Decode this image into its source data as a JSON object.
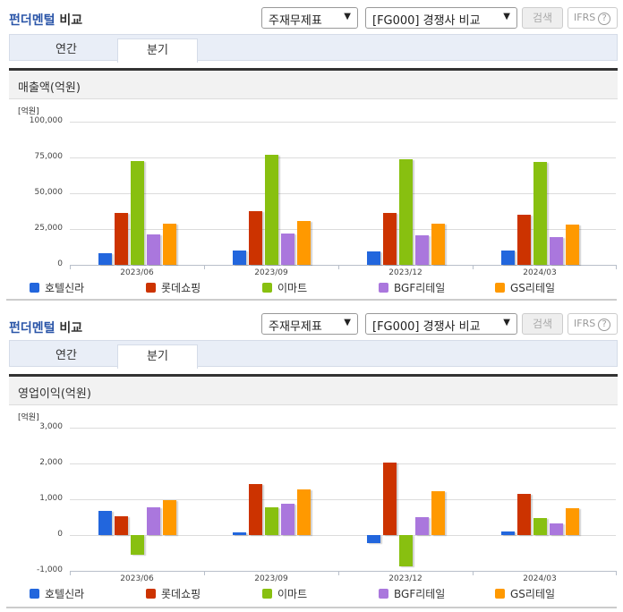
{
  "header": {
    "title_accent": "펀더멘털",
    "title_rest": " 비교",
    "statement_select": "주재무제표",
    "group_select": "[FG000] 경쟁사 비교",
    "search_label": "검색",
    "ifrs_label": "IFRS",
    "help_glyph": "?"
  },
  "tabs": [
    {
      "label": "연간",
      "active": false
    },
    {
      "label": "분기",
      "active": true
    }
  ],
  "legend": [
    {
      "name": "호텔신라",
      "color": "#2266dd"
    },
    {
      "name": "롯데쇼핑",
      "color": "#cc3300"
    },
    {
      "name": "이마트",
      "color": "#88c010"
    },
    {
      "name": "BGF리테일",
      "color": "#aa77dd"
    },
    {
      "name": "GS리테일",
      "color": "#ff9900"
    }
  ],
  "chart_data": [
    {
      "type": "bar",
      "title": "매출액(억원)",
      "unit_label": "[억원]",
      "ylabel": "억원",
      "categories": [
        "2023/06",
        "2023/09",
        "2023/12",
        "2024/03"
      ],
      "yticks": [
        "100,000",
        "75,000",
        "50,000",
        "25,000",
        "0"
      ],
      "ylim": [
        0,
        100000
      ],
      "grid": true,
      "legend_position": "bottom",
      "series": [
        {
          "name": "호텔신라",
          "values": [
            8000,
            10000,
            9500,
            10000
          ]
        },
        {
          "name": "롯데쇼핑",
          "values": [
            36000,
            37500,
            36000,
            35000
          ]
        },
        {
          "name": "이마트",
          "values": [
            72500,
            77000,
            74000,
            72000
          ]
        },
        {
          "name": "BGF리테일",
          "values": [
            21000,
            22000,
            20500,
            19500
          ]
        },
        {
          "name": "GS리테일",
          "values": [
            29000,
            30500,
            28500,
            28000
          ]
        }
      ]
    },
    {
      "type": "bar",
      "title": "영업이익(억원)",
      "unit_label": "[억원]",
      "ylabel": "억원",
      "categories": [
        "2023/06",
        "2023/09",
        "2023/12",
        "2024/03"
      ],
      "yticks": [
        "3,000",
        "2,000",
        "1,000",
        "0",
        "-1,000"
      ],
      "ylim": [
        -1000,
        3000
      ],
      "grid": true,
      "legend_position": "bottom",
      "series": [
        {
          "name": "호텔신라",
          "values": [
            680,
            70,
            -220,
            110
          ]
        },
        {
          "name": "롯데쇼핑",
          "values": [
            520,
            1430,
            2020,
            1150
          ]
        },
        {
          "name": "이마트",
          "values": [
            -560,
            770,
            -880,
            470
          ]
        },
        {
          "name": "BGF리테일",
          "values": [
            780,
            870,
            500,
            320
          ]
        },
        {
          "name": "GS리테일",
          "values": [
            970,
            1270,
            1220,
            750
          ]
        }
      ]
    }
  ]
}
